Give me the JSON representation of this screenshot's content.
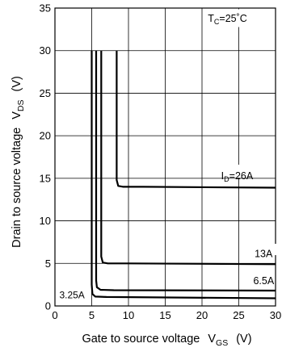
{
  "chart_data": {
    "type": "line",
    "xlabel": "Gate to source voltage",
    "xlabel_symbol": "V",
    "xlabel_sub": "GS",
    "xlabel_unit": "(V)",
    "ylabel": "Drain to source voltage",
    "ylabel_symbol": "V",
    "ylabel_sub": "DS",
    "ylabel_unit": "(V)",
    "xlim": [
      0,
      30
    ],
    "ylim": [
      0,
      35
    ],
    "xticks": [
      0,
      5,
      10,
      15,
      20,
      25,
      30
    ],
    "yticks": [
      0,
      5,
      10,
      15,
      20,
      25,
      30,
      35
    ],
    "grid": true,
    "condition": {
      "symbol": "T",
      "sub": "C",
      "value": "=25˚C"
    },
    "series": [
      {
        "name": "3.25A",
        "points": [
          [
            5.0,
            30
          ],
          [
            5.0,
            2.5
          ],
          [
            5.1,
            1.4
          ],
          [
            5.5,
            1.1
          ],
          [
            7,
            1.05
          ],
          [
            30,
            0.9
          ]
        ]
      },
      {
        "name": "6.5A",
        "points": [
          [
            5.6,
            30
          ],
          [
            5.6,
            3.0
          ],
          [
            5.7,
            2.2
          ],
          [
            6.2,
            1.9
          ],
          [
            8,
            1.85
          ],
          [
            30,
            1.8
          ]
        ]
      },
      {
        "name": "13A",
        "points": [
          [
            6.3,
            30
          ],
          [
            6.3,
            5.8
          ],
          [
            6.5,
            5.1
          ],
          [
            7.2,
            5.0
          ],
          [
            10,
            5.0
          ],
          [
            30,
            4.9
          ]
        ]
      },
      {
        "name": "26A",
        "label_prefix": "I",
        "label_sub": "D",
        "label_suffix": "=26A",
        "points": [
          [
            8.4,
            30
          ],
          [
            8.4,
            14.8
          ],
          [
            8.6,
            14.1
          ],
          [
            9.3,
            14.0
          ],
          [
            12,
            14.0
          ],
          [
            30,
            13.9
          ]
        ]
      }
    ]
  }
}
